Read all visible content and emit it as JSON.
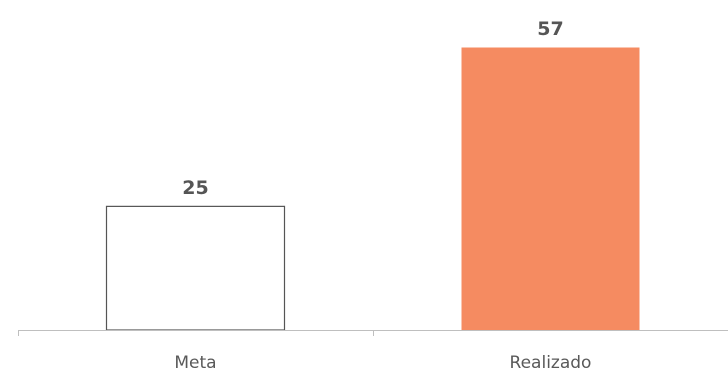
{
  "chart_data": {
    "type": "bar",
    "categories": [
      "Meta",
      "Realizado"
    ],
    "values": [
      25,
      57
    ],
    "data_labels": [
      "25",
      "57"
    ],
    "ylim": [
      0,
      57
    ],
    "grid": false,
    "legend": "none",
    "colors": {
      "bars": [
        "#ffffff",
        "#f58b61"
      ],
      "bar_outlines": [
        "#555555",
        "none"
      ],
      "axis": "#bfbfbf",
      "labels": "#595959",
      "data_labels": "#555555"
    }
  }
}
